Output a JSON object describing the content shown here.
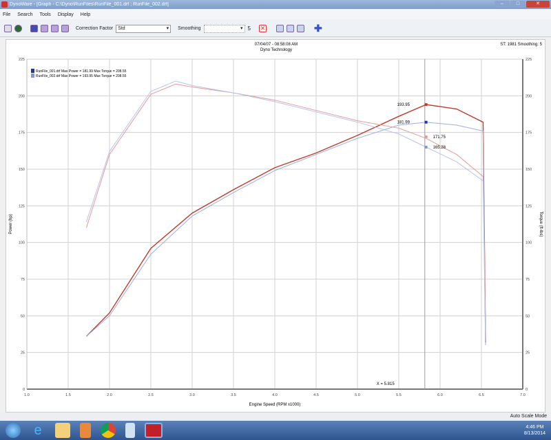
{
  "window": {
    "title": "DynoWare - [Graph - C:\\Dyno\\RunFiles\\RunFile_001.drf ; RunFile_002.drf]"
  },
  "menu": [
    "File",
    "Search",
    "Tools",
    "Display",
    "Help"
  ],
  "toolbar": {
    "correction_label": "Correction Factor",
    "correction_value": "Std",
    "smoothing_label": "Smoothing",
    "smoothing_value": "5"
  },
  "chart_header": {
    "line1": "07/04/07 - 08:58:08 AM",
    "line2": "Dyno Technology",
    "right": "ST: 1981 Smoothing: 5"
  },
  "status": {
    "mode": "Auto Scale Mode"
  },
  "clock": {
    "time": "4:46 PM",
    "date": "8/13/2014"
  },
  "colors": {
    "run1": "#c0392b",
    "run2": "#7f97d6",
    "run1_light": "#e8a0a0",
    "run2_light": "#aab8e6"
  },
  "chart_data": {
    "type": "line",
    "xlabel": "Engine Speed (RPM x1000)",
    "ylabel": "Power (hp)",
    "y2label": "Torque (ft-lbs)",
    "xlim": [
      1.0,
      7.0
    ],
    "ylim": [
      0,
      225
    ],
    "xticks": [
      "1.0",
      "1.5",
      "2.0",
      "2.5",
      "3.0",
      "3.5",
      "4.0",
      "4.5",
      "5.0",
      "5.5",
      "6.0",
      "6.5",
      "7.0"
    ],
    "yticks": [
      "0",
      "25",
      "50",
      "75",
      "100",
      "125",
      "150",
      "175",
      "200",
      "225"
    ],
    "grid": true,
    "legend": "top-left",
    "legend_entries": [
      "RunFile_001.drf Max Power = 181.99 Max Torque = 208.55",
      "RunFile_002.drf Max Power = 193.95 Max Torque = 208.55"
    ],
    "cursor_label": "X = 5.815",
    "annotations": [
      "193.95",
      "181.99",
      "171.75",
      "165.28"
    ],
    "series": [
      {
        "role": "power",
        "run": 2,
        "color": "#c0392b",
        "x": [
          1.72,
          2.0,
          2.5,
          3.0,
          3.5,
          4.0,
          4.5,
          5.0,
          5.5,
          5.83,
          6.2,
          6.52,
          6.55
        ],
        "y": [
          36,
          52,
          96,
          120,
          136,
          151,
          161,
          173,
          186,
          194,
          191,
          182,
          32
        ]
      },
      {
        "role": "power",
        "run": 1,
        "color": "#9aaee0",
        "x": [
          1.72,
          2.0,
          2.5,
          3.0,
          3.5,
          4.0,
          4.5,
          5.0,
          5.5,
          5.83,
          6.2,
          6.52,
          6.55
        ],
        "y": [
          36,
          50,
          92,
          118,
          134,
          149,
          160,
          171,
          180,
          182,
          180,
          176,
          30
        ]
      },
      {
        "role": "torque",
        "run": 2,
        "color": "#e29a9a",
        "x": [
          1.72,
          2.0,
          2.5,
          2.8,
          3.0,
          3.5,
          4.0,
          4.5,
          5.0,
          5.5,
          5.83,
          6.2,
          6.52,
          6.55
        ],
        "y": [
          110,
          160,
          201,
          208,
          206,
          202,
          197,
          190,
          183,
          178,
          171,
          160,
          145,
          35
        ]
      },
      {
        "role": "torque",
        "run": 1,
        "color": "#b7c2e8",
        "x": [
          1.72,
          2.0,
          2.5,
          2.8,
          3.0,
          3.5,
          4.0,
          4.5,
          5.0,
          5.5,
          5.83,
          6.2,
          6.52,
          6.55
        ],
        "y": [
          114,
          162,
          203,
          210,
          207,
          202,
          196,
          189,
          182,
          174,
          165,
          155,
          142,
          33
        ]
      }
    ]
  }
}
